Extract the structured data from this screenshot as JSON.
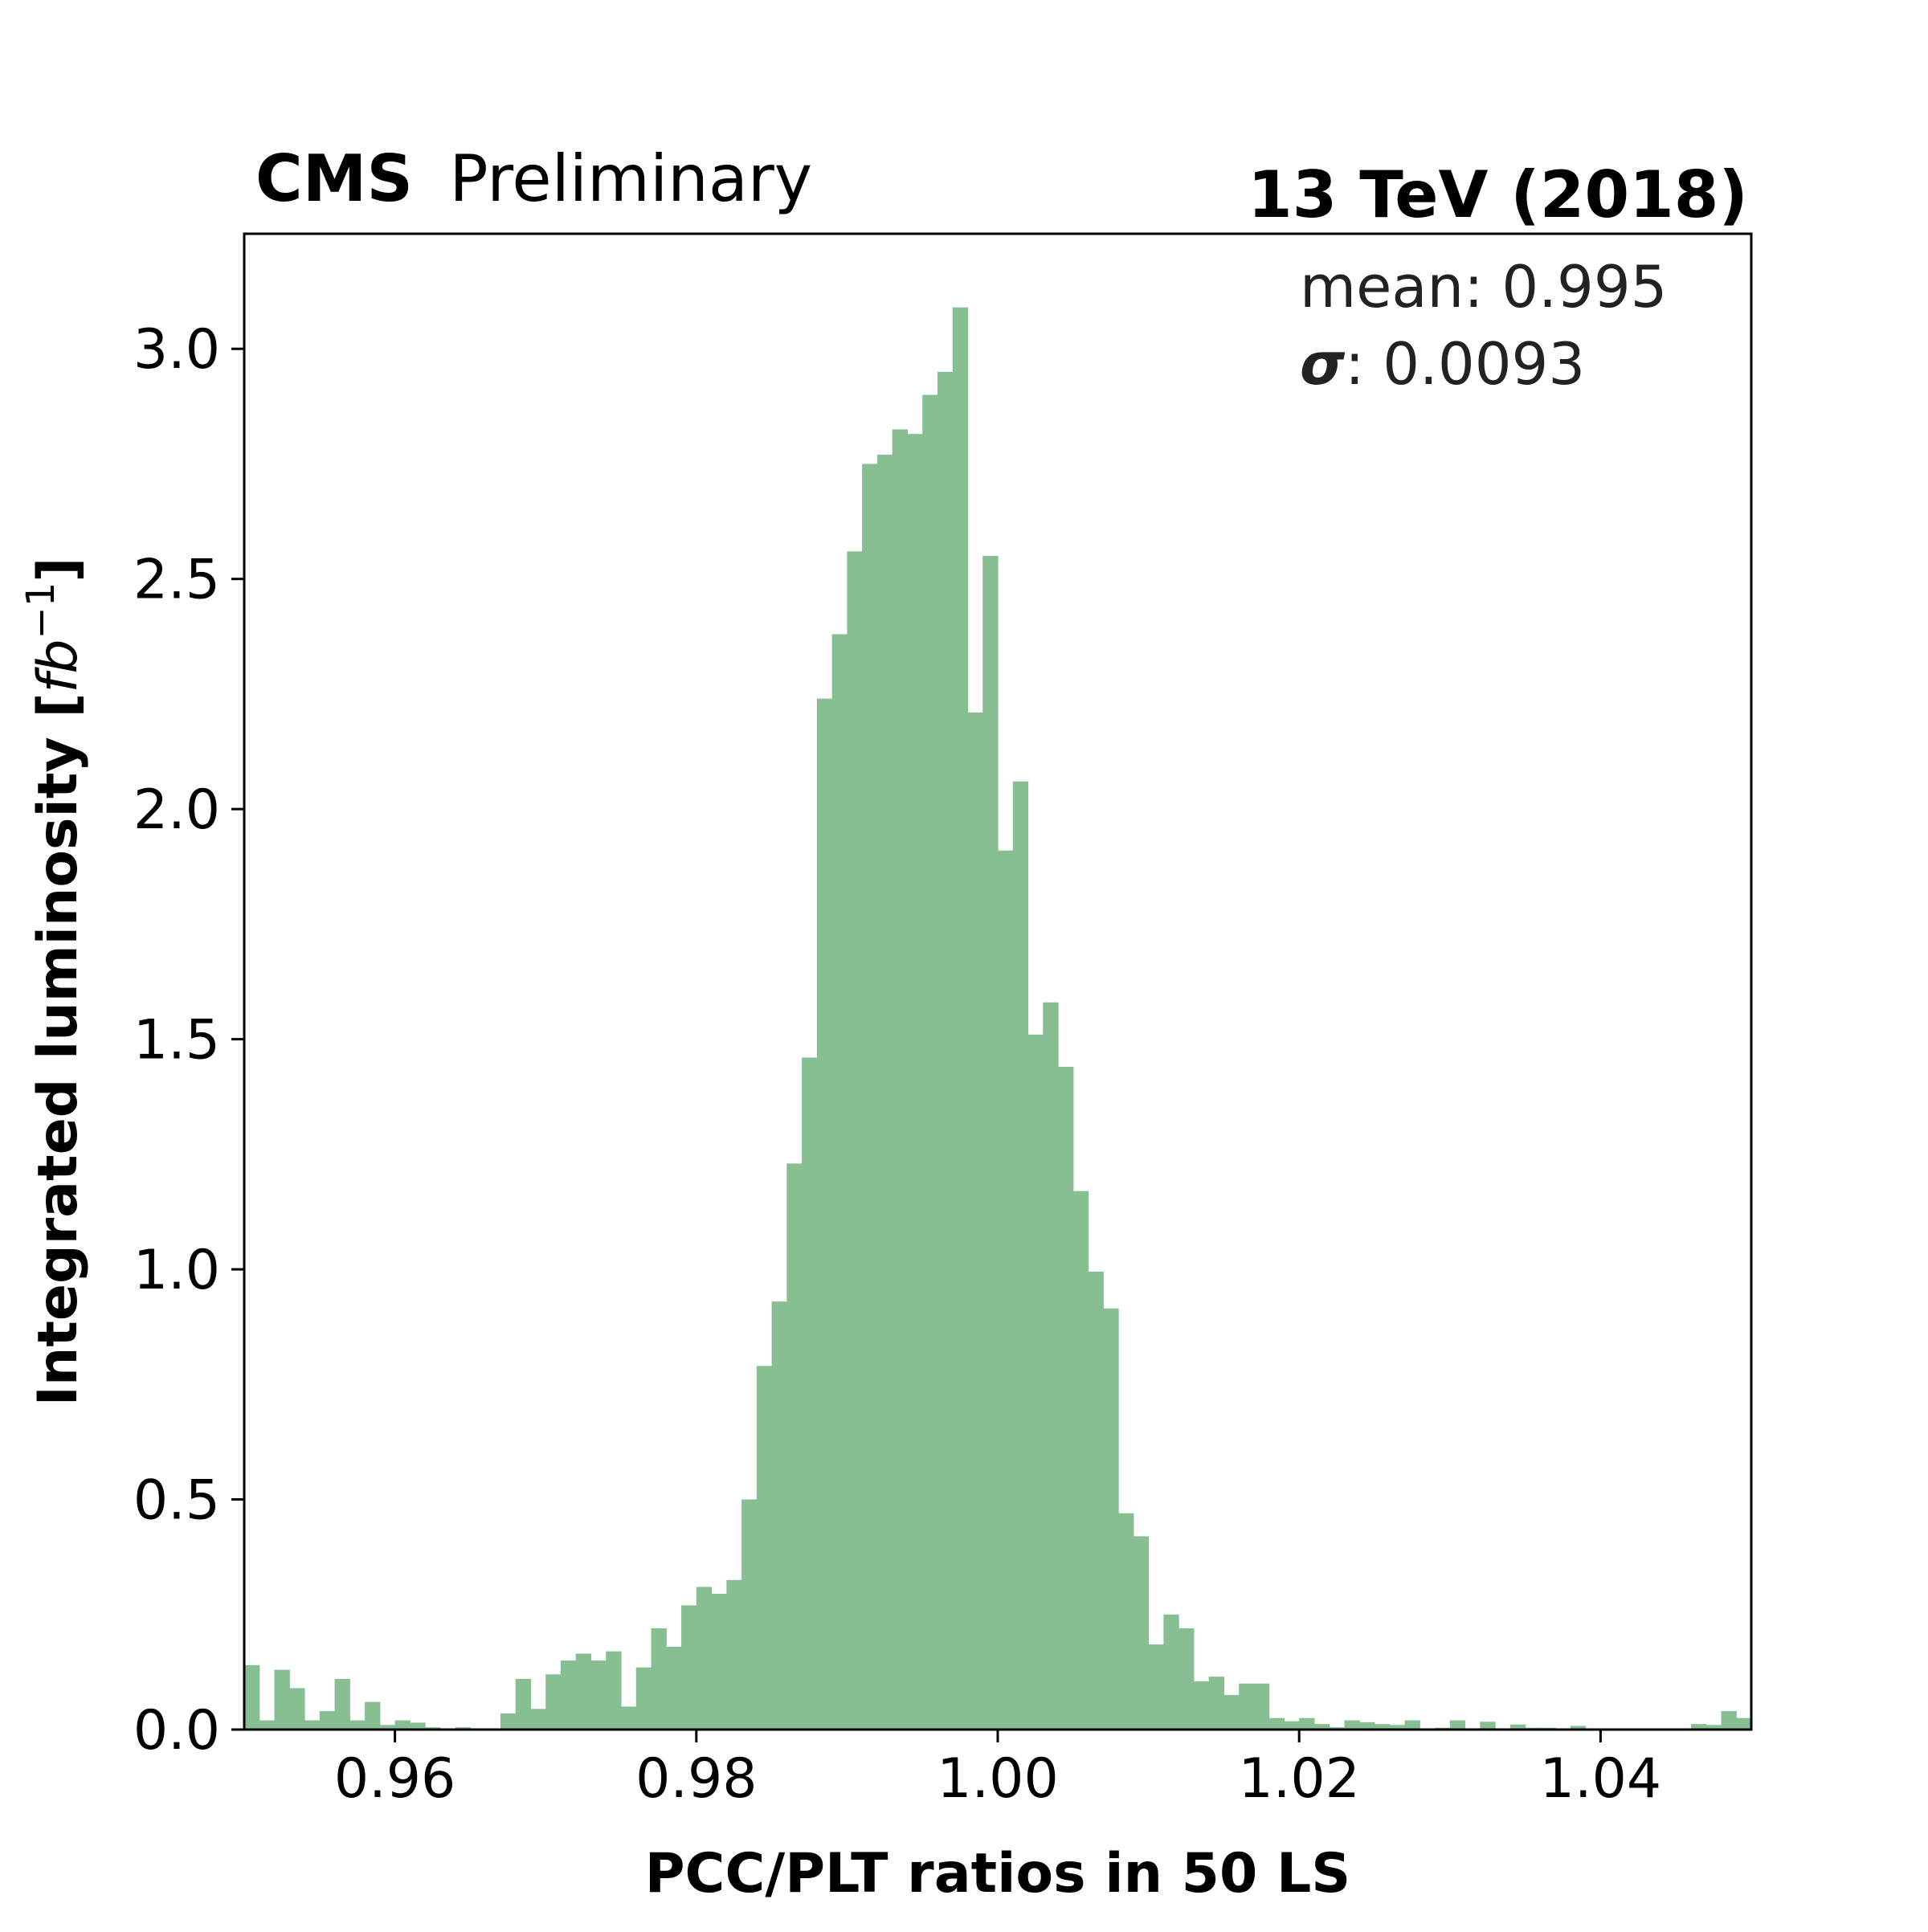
{
  "header": {
    "experiment": "CMS",
    "status": "Preliminary",
    "energy": "13 TeV (2018)"
  },
  "stats": {
    "mean_label": "mean: 0.995",
    "sigma_symbol": "σ",
    "sigma_value": ": 0.0093"
  },
  "colors": {
    "bar": "#88bf92",
    "frame": "#000000"
  },
  "chart_data": {
    "type": "bar",
    "xlabel": "PCC/PLT ratios in 50 LS",
    "ylabel_text": "Integrated luminosity [",
    "ylabel_unit": "fb",
    "ylabel_exp": "−1",
    "ylabel_close": "]",
    "xlim": [
      0.95,
      1.05
    ],
    "ylim": [
      0,
      3.25
    ],
    "bin_width": 0.001,
    "bin_start": 0.95,
    "xticks": [
      0.96,
      0.98,
      1.0,
      1.02,
      1.04
    ],
    "xtick_labels": [
      "0.96",
      "0.98",
      "1.00",
      "1.02",
      "1.04"
    ],
    "yticks": [
      0,
      0.5,
      1.0,
      1.5,
      2.0,
      2.5,
      3.0
    ],
    "ytick_labels": [
      "0.0",
      "0.5",
      "1.0",
      "1.5",
      "2.0",
      "2.5",
      "3.0"
    ],
    "values": [
      0.14,
      0.02,
      0.13,
      0.09,
      0.02,
      0.04,
      0.11,
      0.02,
      0.06,
      0.01,
      0.02,
      0.015,
      0.005,
      0.0,
      0.005,
      0.0,
      0.0,
      0.035,
      0.11,
      0.045,
      0.12,
      0.15,
      0.165,
      0.15,
      0.17,
      0.05,
      0.135,
      0.22,
      0.18,
      0.27,
      0.31,
      0.295,
      0.325,
      0.5,
      0.79,
      0.93,
      1.23,
      1.46,
      2.24,
      2.38,
      2.56,
      2.75,
      2.77,
      2.825,
      2.815,
      2.9,
      2.95,
      3.09,
      2.21,
      2.55,
      1.91,
      2.06,
      1.51,
      1.58,
      1.44,
      1.17,
      0.995,
      0.915,
      0.47,
      0.42,
      0.185,
      0.25,
      0.22,
      0.105,
      0.115,
      0.075,
      0.1,
      0.1,
      0.025,
      0.018,
      0.025,
      0.012,
      0.005,
      0.02,
      0.016,
      0.012,
      0.01,
      0.02,
      0.0,
      0.004,
      0.02,
      0.0,
      0.017,
      0.0,
      0.011,
      0.004,
      0.004,
      0.0,
      0.008,
      0.0,
      0.0,
      0.0,
      0.0,
      0.0,
      0.0,
      0.0,
      0.012,
      0.01,
      0.04,
      0.025
    ]
  }
}
